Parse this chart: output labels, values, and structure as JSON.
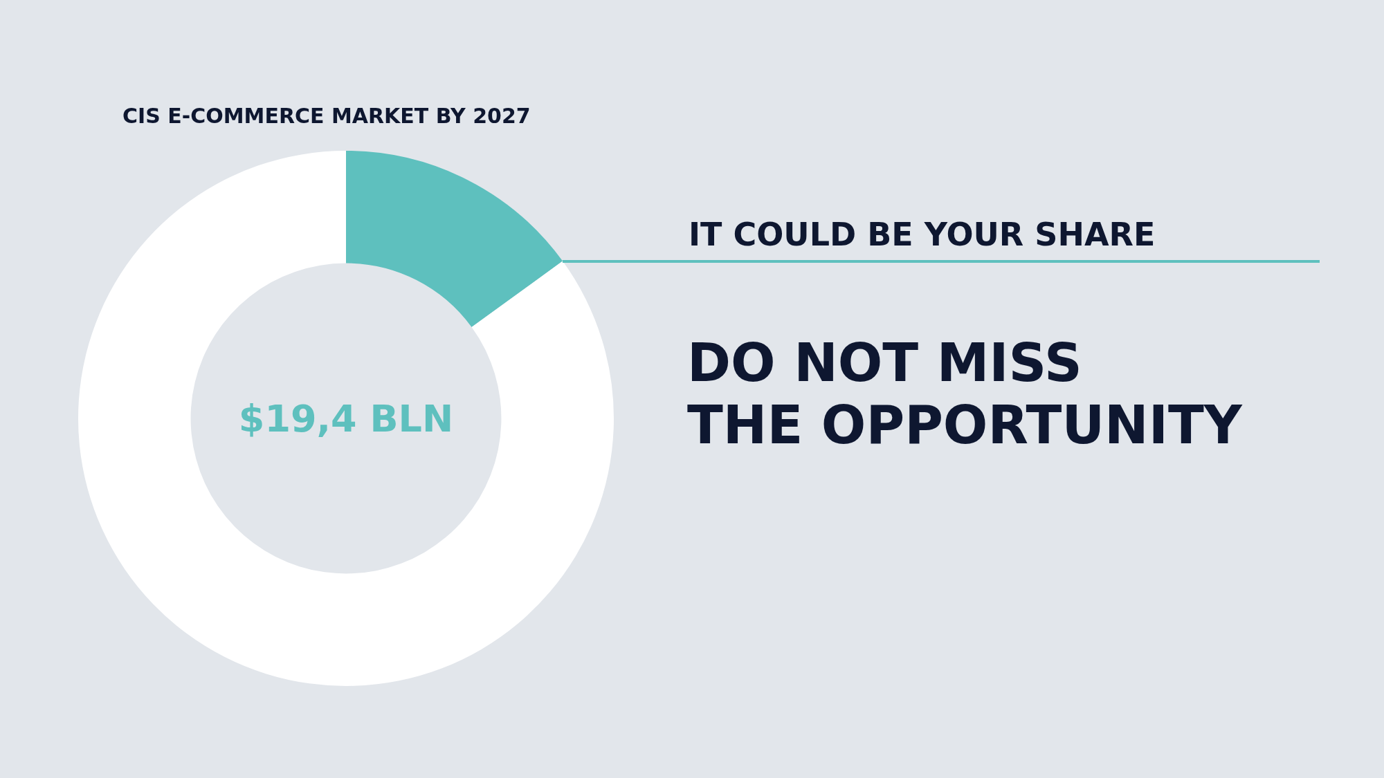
{
  "chart_data": {
    "type": "donut",
    "title": "CIS E-COMMERCE MARKET BY 2027",
    "categories": [
      null,
      null
    ],
    "values": [
      15,
      85
    ],
    "colors": [
      "#5ec0be",
      "#ffffff"
    ],
    "annotations": [
      "$19,4 BLN",
      "IT COULD BE YOUR SHARE",
      "DO NOT MISS",
      "THE OPPORTUNITY"
    ]
  }
}
